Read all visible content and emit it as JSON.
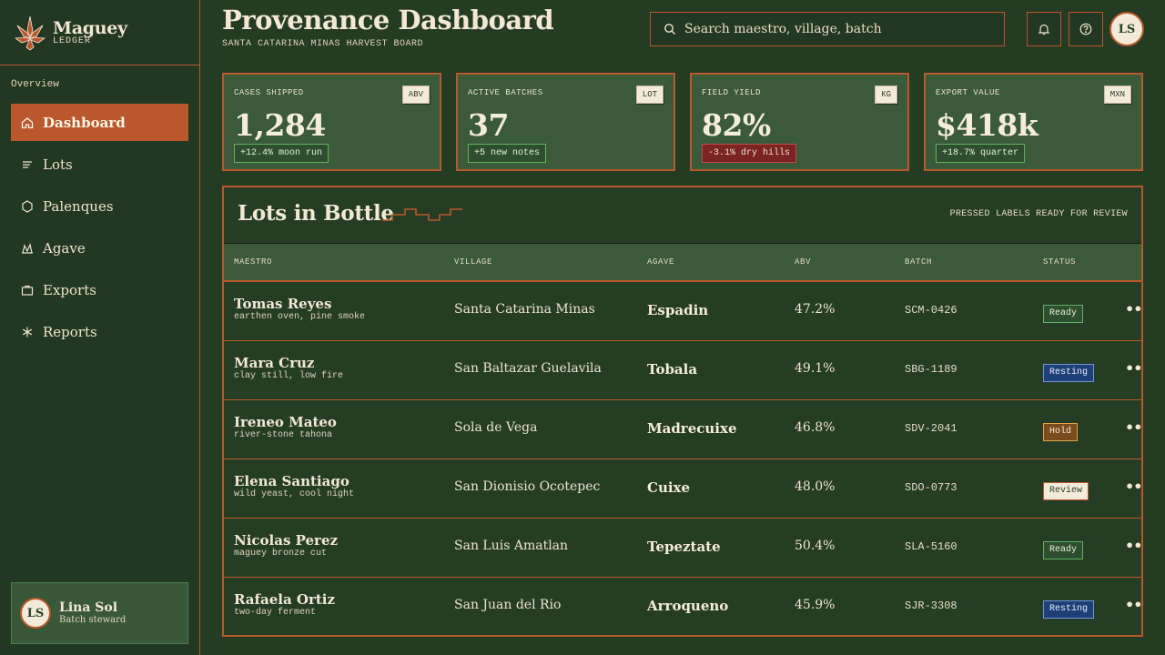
{
  "brand": {
    "name": "Maguey",
    "sub": "LEDGER"
  },
  "nav": {
    "caption": "Overview",
    "items": [
      {
        "label": "Dashboard",
        "icon": "home-icon",
        "active": true
      },
      {
        "label": "Lots",
        "icon": "list-icon",
        "active": false
      },
      {
        "label": "Palenques",
        "icon": "hexagon-icon",
        "active": false
      },
      {
        "label": "Agave",
        "icon": "agave-icon",
        "active": false
      },
      {
        "label": "Exports",
        "icon": "briefcase-icon",
        "active": false
      },
      {
        "label": "Reports",
        "icon": "asterisk-icon",
        "active": false
      }
    ]
  },
  "user": {
    "initials": "LS",
    "name": "Lina Sol",
    "role": "Batch steward"
  },
  "header": {
    "title": "Provenance Dashboard",
    "subtitle": "SANTA CATARINA MINAS HARVEST BOARD",
    "search_placeholder": "Search maestro, village, batch",
    "avatar_initials": "LS"
  },
  "stats": [
    {
      "label": "CASES SHIPPED",
      "tag": "ABV",
      "value": "1,284",
      "delta": "+12.4% moon run",
      "trend": "up"
    },
    {
      "label": "ACTIVE BATCHES",
      "tag": "LOT",
      "value": "37",
      "delta": "+5 new notes",
      "trend": "up"
    },
    {
      "label": "FIELD YIELD",
      "tag": "KG",
      "value": "82%",
      "delta": "-3.1% dry hills",
      "trend": "down"
    },
    {
      "label": "EXPORT VALUE",
      "tag": "MXN",
      "value": "$418k",
      "delta": "+18.7% quarter",
      "trend": "up"
    }
  ],
  "table": {
    "title": "Lots in Bottle",
    "note": "PRESSED LABELS READY FOR REVIEW",
    "columns": [
      "MAESTRO",
      "VILLAGE",
      "AGAVE",
      "ABV",
      "BATCH",
      "STATUS"
    ],
    "rows": [
      {
        "maestro": "Tomas Reyes",
        "note": "earthen oven, pine smoke",
        "village": "Santa Catarina Minas",
        "agave": "Espadin",
        "abv": "47.2%",
        "batch": "SCM-0426",
        "status": "Ready",
        "status_kind": "ready"
      },
      {
        "maestro": "Mara Cruz",
        "note": "clay still, low fire",
        "village": "San Baltazar Guelavila",
        "agave": "Tobala",
        "abv": "49.1%",
        "batch": "SBG-1189",
        "status": "Resting",
        "status_kind": "resting"
      },
      {
        "maestro": "Ireneo Mateo",
        "note": "river-stone tahona",
        "village": "Sola de Vega",
        "agave": "Madrecuixe",
        "abv": "46.8%",
        "batch": "SDV-2041",
        "status": "Hold",
        "status_kind": "hold"
      },
      {
        "maestro": "Elena Santiago",
        "note": "wild yeast, cool night",
        "village": "San Dionisio Ocotepec",
        "agave": "Cuixe",
        "abv": "48.0%",
        "batch": "SDO-0773",
        "status": "Review",
        "status_kind": "review"
      },
      {
        "maestro": "Nicolas Perez",
        "note": "maguey bronze cut",
        "village": "San Luis Amatlan",
        "agave": "Tepeztate",
        "abv": "50.4%",
        "batch": "SLA-5160",
        "status": "Ready",
        "status_kind": "ready"
      },
      {
        "maestro": "Rafaela Ortiz",
        "note": "two-day ferment",
        "village": "San Juan del Rio",
        "agave": "Arroqueno",
        "abv": "45.9%",
        "batch": "SJR-3308",
        "status": "Resting",
        "status_kind": "resting"
      }
    ]
  },
  "colors": {
    "background": "#243b24",
    "accent": "#b9582c",
    "card": "#3a5a3a",
    "text": "#f1e6d2"
  }
}
